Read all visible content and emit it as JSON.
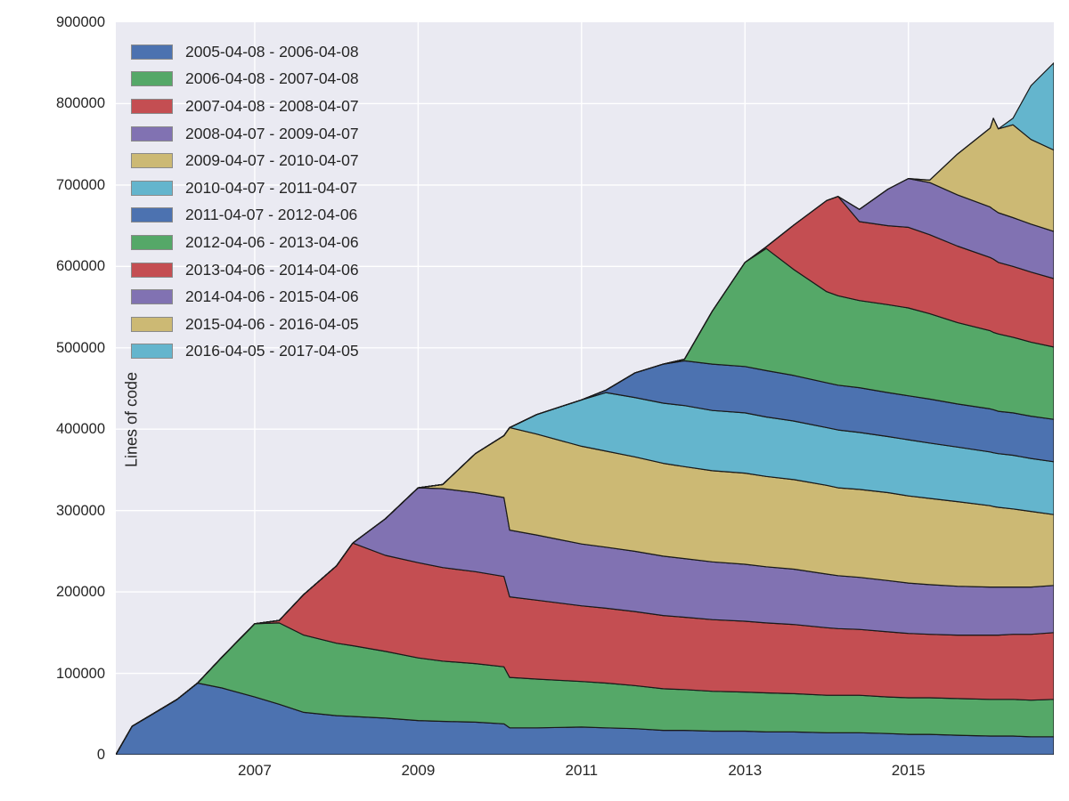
{
  "chart_data": {
    "type": "area",
    "stacked": true,
    "title": "",
    "ylabel": "Lines of code",
    "xlabel": "",
    "grid": true,
    "legend_position": "upper left",
    "plot_background": "#EAEAF2",
    "gridline_color": "#ffffff",
    "edge_color": "#1a1a1a",
    "xlim": [
      2005.3,
      2016.78
    ],
    "ylim": [
      0,
      900000
    ],
    "xticks": {
      "values": [
        2007,
        2009,
        2011,
        2013,
        2015
      ],
      "labels": [
        "2007",
        "2009",
        "2011",
        "2013",
        "2015"
      ]
    },
    "yticks": {
      "values": [
        0,
        100000,
        200000,
        300000,
        400000,
        500000,
        600000,
        700000,
        800000,
        900000
      ],
      "labels": [
        "0",
        "100000",
        "200000",
        "300000",
        "400000",
        "500000",
        "600000",
        "700000",
        "800000",
        "900000"
      ]
    },
    "x": [
      2005.3,
      2005.5,
      2005.75,
      2006.05,
      2006.3,
      2006.6,
      2007.0,
      2007.3,
      2007.6,
      2008.0,
      2008.2,
      2008.6,
      2009.0,
      2009.3,
      2009.7,
      2010.05,
      2010.12,
      2010.45,
      2011.0,
      2011.3,
      2011.65,
      2012.0,
      2012.26,
      2012.6,
      2013.0,
      2013.26,
      2013.6,
      2014.0,
      2014.14,
      2014.4,
      2014.75,
      2015.0,
      2015.26,
      2015.6,
      2016.0,
      2016.04,
      2016.1,
      2016.28,
      2016.5,
      2016.78
    ],
    "series": [
      {
        "name": "2005-04-08 - 2006-04-08",
        "color": "#4C72B0",
        "values": [
          0,
          35000,
          50000,
          68000,
          88000,
          82000,
          71000,
          62000,
          52000,
          48000,
          47000,
          45000,
          42000,
          41000,
          40000,
          38000,
          33000,
          33000,
          34000,
          33000,
          32000,
          30000,
          30000,
          29000,
          29000,
          28000,
          28000,
          27000,
          27000,
          27000,
          26000,
          25000,
          25000,
          24000,
          23000,
          23000,
          23000,
          23000,
          22000,
          22000
        ]
      },
      {
        "name": "2006-04-08 - 2007-04-08",
        "color": "#55A868",
        "values": [
          0,
          0,
          0,
          0,
          0,
          38000,
          90000,
          100000,
          95000,
          89000,
          87000,
          82000,
          77000,
          74000,
          72000,
          70000,
          62000,
          60000,
          56000,
          55000,
          53000,
          51000,
          50000,
          49000,
          48000,
          48000,
          47000,
          46000,
          46000,
          46000,
          45000,
          45000,
          45000,
          45000,
          45000,
          45000,
          45000,
          45000,
          45000,
          46000
        ]
      },
      {
        "name": "2007-04-08 - 2008-04-07",
        "color": "#C44E52",
        "values": [
          0,
          0,
          0,
          0,
          0,
          0,
          0,
          3000,
          50000,
          95000,
          126000,
          118000,
          117000,
          115000,
          113000,
          111000,
          99000,
          97000,
          93000,
          92000,
          91000,
          90000,
          89000,
          88000,
          87000,
          86000,
          85000,
          83000,
          82000,
          81000,
          80000,
          79000,
          78000,
          78000,
          79000,
          79000,
          79000,
          80000,
          81000,
          82000
        ]
      },
      {
        "name": "2008-04-07 - 2009-04-07",
        "color": "#8172B2",
        "values": [
          0,
          0,
          0,
          0,
          0,
          0,
          0,
          0,
          0,
          0,
          0,
          45000,
          92000,
          97000,
          97000,
          97000,
          82000,
          80000,
          76000,
          75000,
          74000,
          73000,
          72000,
          71000,
          70000,
          69000,
          68000,
          66000,
          65000,
          64000,
          63000,
          62000,
          61000,
          60000,
          59000,
          59000,
          59000,
          58000,
          58000,
          58000
        ]
      },
      {
        "name": "2009-04-07 - 2010-04-07",
        "color": "#CCB974",
        "values": [
          0,
          0,
          0,
          0,
          0,
          0,
          0,
          0,
          0,
          0,
          0,
          0,
          0,
          5000,
          48000,
          76000,
          126000,
          124000,
          120000,
          118000,
          116000,
          114000,
          113000,
          112000,
          112000,
          111000,
          110000,
          109000,
          108000,
          108000,
          108000,
          107000,
          106000,
          104000,
          100000,
          99000,
          98000,
          96000,
          93000,
          87000
        ]
      },
      {
        "name": "2010-04-07 - 2011-04-07",
        "color": "#64B5CD",
        "values": [
          0,
          0,
          0,
          0,
          0,
          0,
          0,
          0,
          0,
          0,
          0,
          0,
          0,
          0,
          0,
          0,
          0,
          24000,
          57000,
          72000,
          73000,
          74000,
          75000,
          74000,
          74000,
          73000,
          72000,
          71000,
          71000,
          70000,
          69000,
          69000,
          68000,
          67000,
          66000,
          66000,
          66000,
          66000,
          65000,
          65000
        ]
      },
      {
        "name": "2011-04-07 - 2012-04-06",
        "color": "#4C72B0",
        "values": [
          0,
          0,
          0,
          0,
          0,
          0,
          0,
          0,
          0,
          0,
          0,
          0,
          0,
          0,
          0,
          0,
          0,
          0,
          0,
          3000,
          30000,
          48000,
          55000,
          57000,
          57000,
          57000,
          56000,
          55000,
          55000,
          55000,
          54000,
          54000,
          54000,
          53000,
          53000,
          53000,
          52000,
          52000,
          52000,
          52000
        ]
      },
      {
        "name": "2012-04-06 - 2013-04-06",
        "color": "#55A868",
        "values": [
          0,
          0,
          0,
          0,
          0,
          0,
          0,
          0,
          0,
          0,
          0,
          0,
          0,
          0,
          0,
          0,
          0,
          0,
          0,
          0,
          0,
          0,
          2000,
          65000,
          128000,
          150000,
          130000,
          112000,
          110000,
          107000,
          108000,
          108000,
          105000,
          100000,
          96000,
          95000,
          95000,
          93000,
          91000,
          89000
        ]
      },
      {
        "name": "2013-04-06 - 2014-04-06",
        "color": "#C44E52",
        "values": [
          0,
          0,
          0,
          0,
          0,
          0,
          0,
          0,
          0,
          0,
          0,
          0,
          0,
          0,
          0,
          0,
          0,
          0,
          0,
          0,
          0,
          0,
          0,
          0,
          0,
          2000,
          55000,
          112000,
          122000,
          97000,
          97000,
          99000,
          97000,
          94000,
          90000,
          90000,
          88000,
          87000,
          86000,
          84000
        ]
      },
      {
        "name": "2014-04-06 - 2015-04-06",
        "color": "#8172B2",
        "values": [
          0,
          0,
          0,
          0,
          0,
          0,
          0,
          0,
          0,
          0,
          0,
          0,
          0,
          0,
          0,
          0,
          0,
          0,
          0,
          0,
          0,
          0,
          0,
          0,
          0,
          0,
          0,
          0,
          0,
          15000,
          45000,
          60000,
          64000,
          63000,
          62000,
          61000,
          61000,
          60000,
          59000,
          58000
        ]
      },
      {
        "name": "2015-04-06 - 2016-04-05",
        "color": "#CCB974",
        "values": [
          0,
          0,
          0,
          0,
          0,
          0,
          0,
          0,
          0,
          0,
          0,
          0,
          0,
          0,
          0,
          0,
          0,
          0,
          0,
          0,
          0,
          0,
          0,
          0,
          0,
          0,
          0,
          0,
          0,
          0,
          0,
          0,
          3000,
          50000,
          97000,
          112000,
          103000,
          114000,
          104000,
          100000
        ]
      },
      {
        "name": "2016-04-05 - 2017-04-05",
        "color": "#64B5CD",
        "values": [
          0,
          0,
          0,
          0,
          0,
          0,
          0,
          0,
          0,
          0,
          0,
          0,
          0,
          0,
          0,
          0,
          0,
          0,
          0,
          0,
          0,
          0,
          0,
          0,
          0,
          0,
          0,
          0,
          0,
          0,
          0,
          0,
          0,
          0,
          0,
          0,
          0,
          8000,
          66000,
          107000
        ]
      }
    ]
  }
}
